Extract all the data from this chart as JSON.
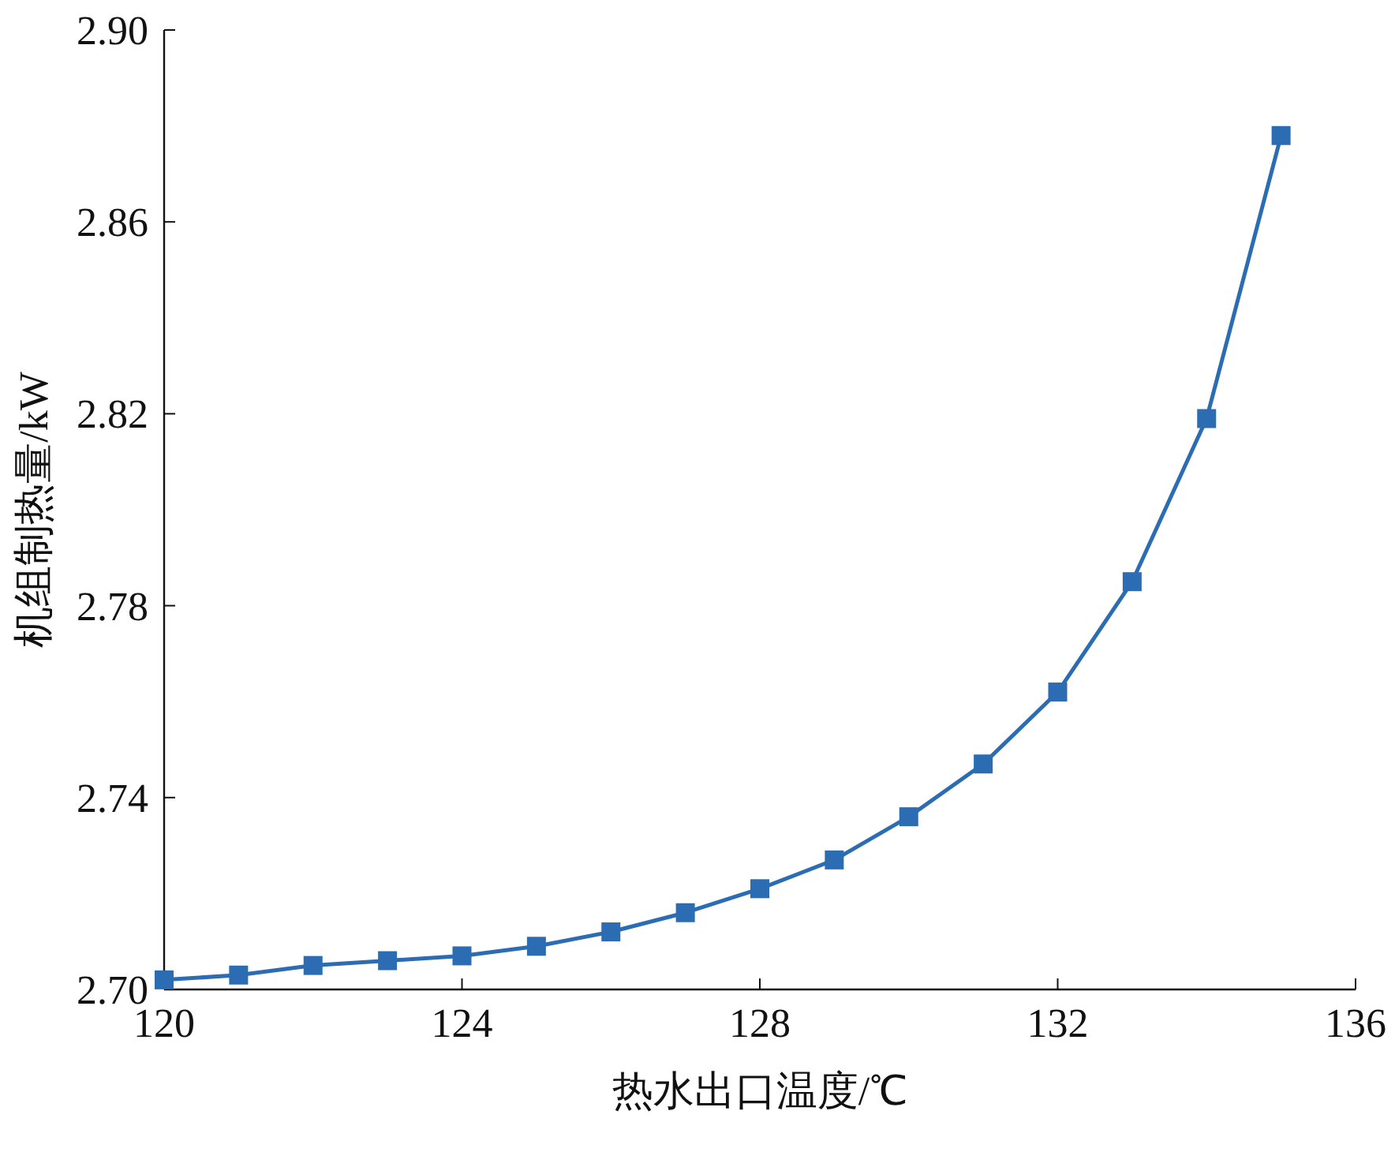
{
  "chart_data": {
    "type": "line",
    "xlabel": "热水出口温度/℃",
    "ylabel": "机组制热量/kW",
    "x": [
      120,
      121,
      122,
      123,
      124,
      125,
      126,
      127,
      128,
      129,
      130,
      131,
      132,
      133,
      134,
      135
    ],
    "series": [
      {
        "color": "#2b6cb3",
        "values": [
          2.702,
          2.703,
          2.705,
          2.706,
          2.707,
          2.709,
          2.712,
          2.716,
          2.721,
          2.727,
          2.736,
          2.747,
          2.762,
          2.785,
          2.819,
          2.878
        ]
      }
    ],
    "xlim": [
      120,
      136
    ],
    "xticks": [
      120,
      124,
      128,
      132,
      136
    ],
    "ylim": [
      2.7,
      2.9
    ],
    "yticks": [
      {
        "value": 2.7,
        "label": "2.70"
      },
      2.74,
      2.78,
      2.82,
      2.86,
      {
        "value": 2.9,
        "label": "2.90"
      }
    ],
    "marker": "square",
    "line_style": "solid",
    "grid": false
  }
}
